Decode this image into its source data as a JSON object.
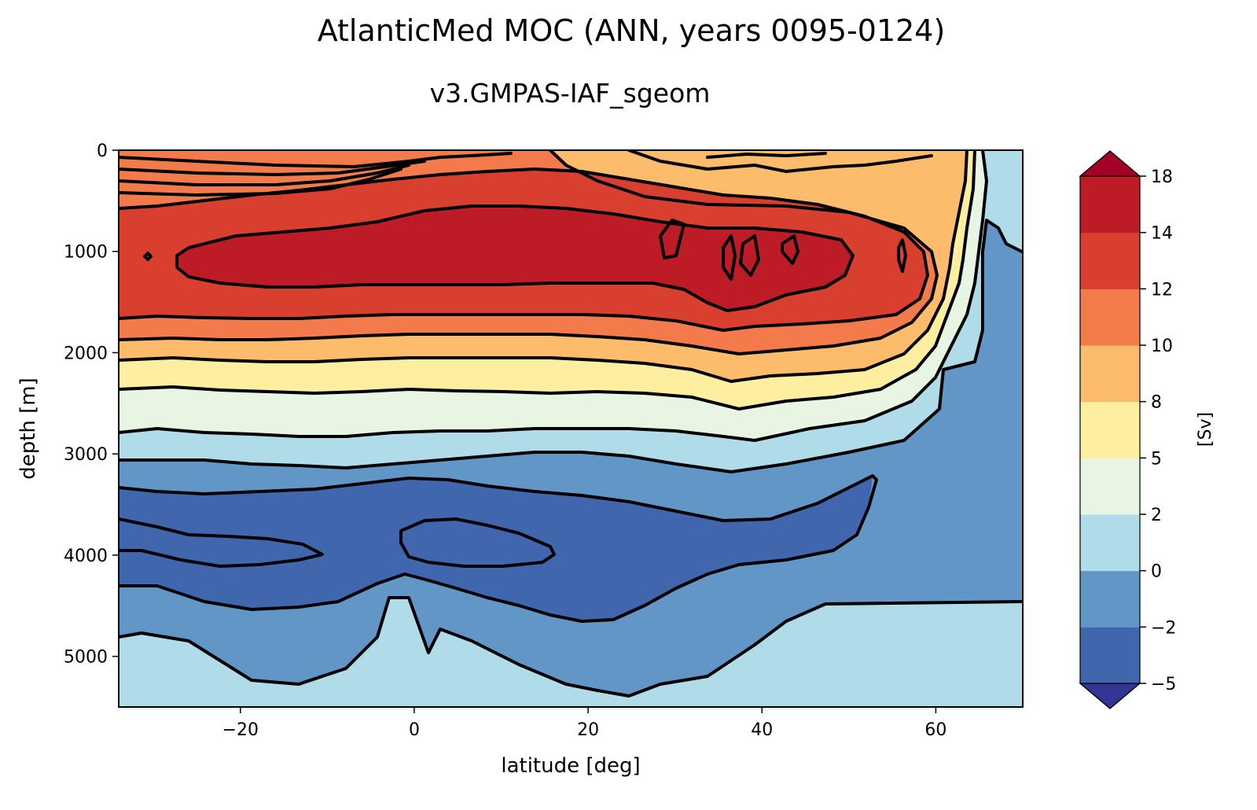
{
  "chart_data": {
    "type": "contour",
    "title": "AtlanticMed MOC (ANN, years 0095-0124)",
    "subtitle": "v3.GMPAS-IAF_sgeom",
    "xlabel": "latitude [deg]",
    "ylabel": "depth [m]",
    "xlim": [
      -34,
      70
    ],
    "ylim": [
      5500,
      0
    ],
    "x_ticks": [
      -20,
      0,
      20,
      40,
      60
    ],
    "x_tick_labels": [
      "−20",
      "0",
      "20",
      "40",
      "60"
    ],
    "y_ticks": [
      0,
      1000,
      2000,
      3000,
      4000,
      5000
    ],
    "y_tick_labels": [
      "0",
      "1000",
      "2000",
      "3000",
      "4000",
      "5000"
    ],
    "colorbar": {
      "label": "[Sv]",
      "levels": [
        -5,
        -2,
        0,
        2,
        5,
        8,
        10,
        12,
        14,
        18
      ],
      "tick_labels": [
        "−5",
        "−2",
        "0",
        "2",
        "5",
        "8",
        "10",
        "12",
        "14",
        "18"
      ],
      "colors": [
        "#4067ad",
        "#6196c6",
        "#b0dbe8",
        "#e8f5e3",
        "#feeea0",
        "#fcbc6c",
        "#f37b4b",
        "#d93f2e",
        "#bd1b25"
      ],
      "under_color": "#313695",
      "over_color": "#a50026"
    },
    "features": [
      {
        "name": "overturning cell core",
        "value_sv": "above 14",
        "lat_range": [
          -27,
          57
        ],
        "depth_range": [
          700,
          1500
        ]
      },
      {
        "name": "local maxima near 40N",
        "lat": [
          36,
          39,
          43
        ],
        "depth": 1000
      },
      {
        "name": "AABW cell",
        "value_sv": "-2 to -5",
        "lat_range": [
          -34,
          52
        ],
        "depth_range": [
          3300,
          4650
        ]
      },
      {
        "name": "bottom cell",
        "value_sv": "0 to 2",
        "depth_range": [
          4500,
          5500
        ]
      }
    ]
  }
}
